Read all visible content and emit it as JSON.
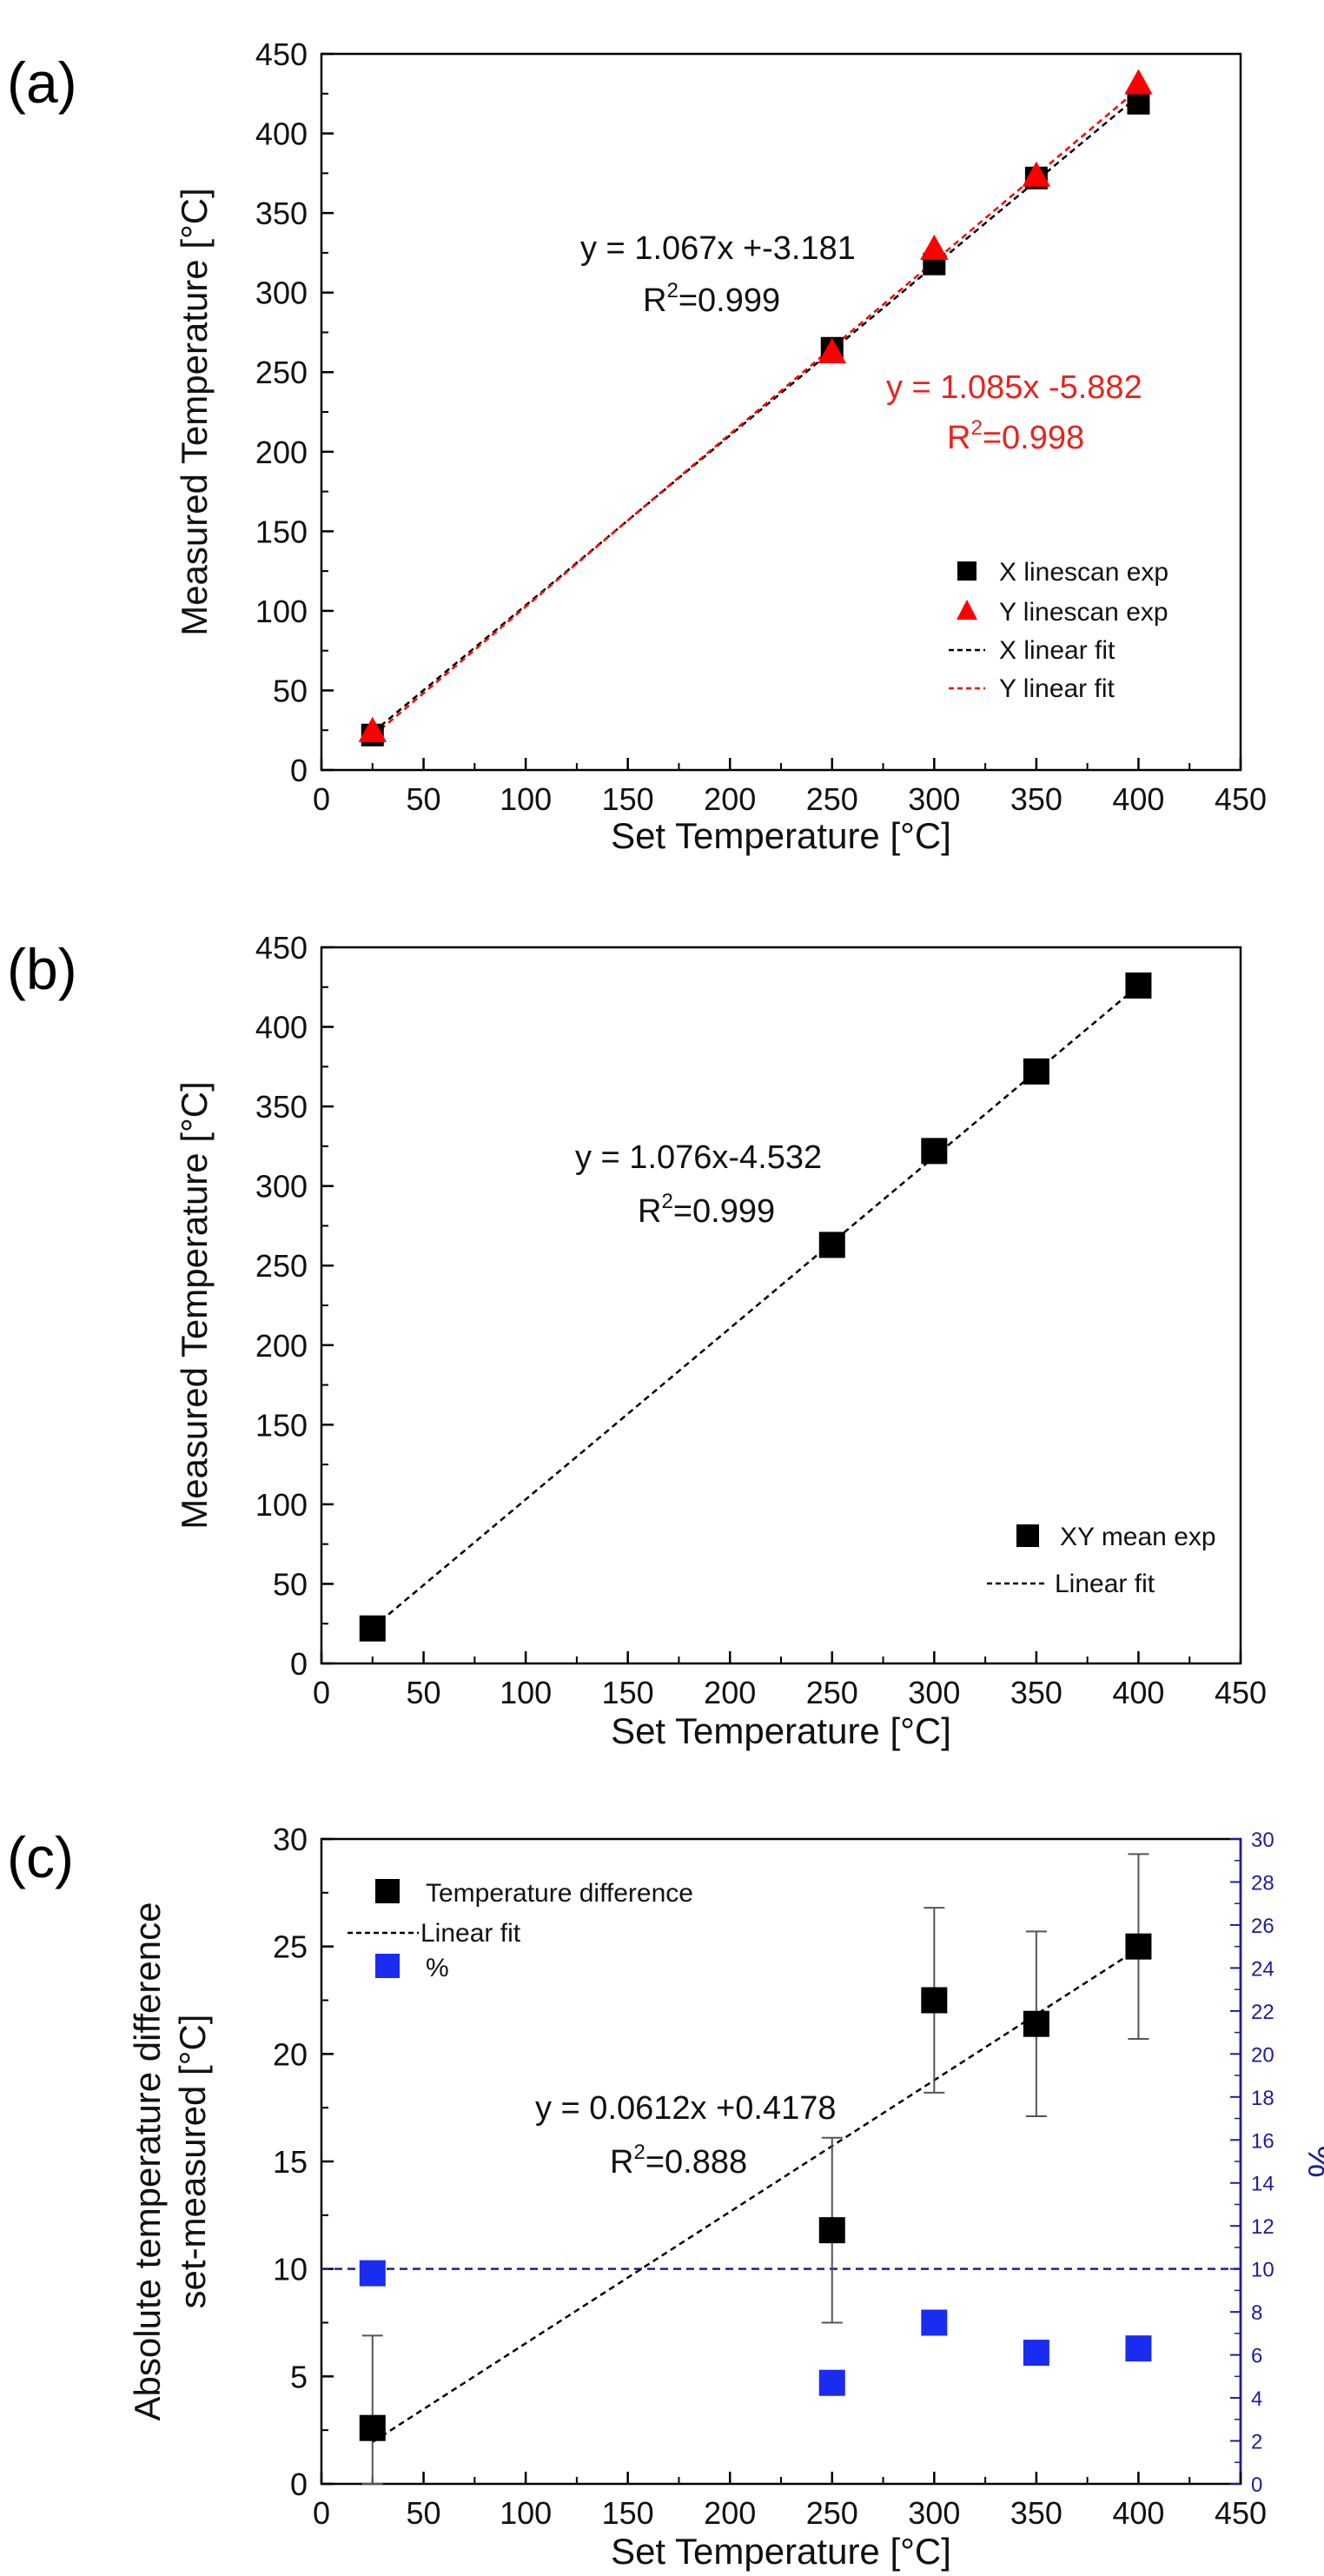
{
  "chart_data": [
    {
      "panel": "(a)",
      "type": "scatter",
      "xlabel": "Set Temperature [°C]",
      "ylabel": "Measured Temperature [°C]",
      "xlim": [
        0,
        450
      ],
      "ylim": [
        0,
        450
      ],
      "xticks": [
        0,
        50,
        100,
        150,
        200,
        250,
        300,
        350,
        400,
        450
      ],
      "yticks": [
        0,
        50,
        100,
        150,
        200,
        250,
        300,
        350,
        400,
        450
      ],
      "series": [
        {
          "name": "X linescan exp",
          "marker": "square",
          "color": "#000000",
          "x": [
            25,
            250,
            300,
            350,
            400
          ],
          "y": [
            22,
            265,
            318,
            372,
            419
          ]
        },
        {
          "name": "Y linescan exp",
          "marker": "triangle",
          "color": "#ff0000",
          "x": [
            25,
            250,
            300,
            350,
            400
          ],
          "y": [
            24,
            262,
            327,
            373,
            431
          ]
        },
        {
          "name": "X linear fit",
          "line": "dashed",
          "color": "#000000",
          "slope": 1.067,
          "intercept": -3.181,
          "xrange": [
            25,
            400
          ]
        },
        {
          "name": "Y linear fit",
          "line": "dashed",
          "color": "#ff0000",
          "slope": 1.085,
          "intercept": -5.882,
          "xrange": [
            25,
            400
          ]
        }
      ],
      "annotations": [
        {
          "eq": "y = 1.067x +-3.181",
          "r2_prefix": "R",
          "r2_sup": "2",
          "r2_value": "=0.999",
          "color": "#111111"
        },
        {
          "eq": "y = 1.085x -5.882",
          "r2_prefix": "R",
          "r2_sup": "2",
          "r2_value": "=0.998",
          "color": "#e8231e"
        }
      ]
    },
    {
      "panel": "(b)",
      "type": "scatter",
      "xlabel": "Set Temperature [°C]",
      "ylabel": "Measured Temperature [°C]",
      "xlim": [
        0,
        450
      ],
      "ylim": [
        0,
        450
      ],
      "xticks": [
        0,
        50,
        100,
        150,
        200,
        250,
        300,
        350,
        400,
        450
      ],
      "yticks": [
        0,
        50,
        100,
        150,
        200,
        250,
        300,
        350,
        400,
        450
      ],
      "series": [
        {
          "name": "XY mean exp",
          "marker": "square",
          "color": "#000000",
          "x": [
            25,
            250,
            300,
            350,
            400
          ],
          "y": [
            22,
            263,
            322,
            372,
            426
          ]
        },
        {
          "name": "Linear fit",
          "line": "dashed",
          "color": "#000000",
          "slope": 1.076,
          "intercept": -4.532,
          "xrange": [
            25,
            400
          ]
        }
      ],
      "annotations": [
        {
          "eq": "y = 1.076x-4.532",
          "r2_prefix": "R",
          "r2_sup": "2",
          "r2_value": "=0.999",
          "color": "#111111"
        }
      ]
    },
    {
      "panel": "(c)",
      "type": "scatter",
      "xlabel": "Set Temperature [°C]",
      "ylabel_line1": "Absolute temperature difference",
      "ylabel_line2": "set-measured [°C]",
      "y2label": "%",
      "xlim": [
        0,
        450
      ],
      "ylim": [
        0,
        30
      ],
      "y2lim": [
        0,
        30
      ],
      "xticks": [
        0,
        50,
        100,
        150,
        200,
        250,
        300,
        350,
        400,
        450
      ],
      "yticks": [
        0,
        5,
        10,
        15,
        20,
        25,
        30
      ],
      "y2ticks": [
        0,
        2,
        4,
        6,
        8,
        10,
        12,
        14,
        16,
        18,
        20,
        22,
        24,
        26,
        28,
        30
      ],
      "series": [
        {
          "name": "Temperature difference",
          "marker": "square",
          "color": "#000000",
          "x": [
            25,
            250,
            300,
            350,
            400
          ],
          "y": [
            2.6,
            11.8,
            22.5,
            21.4,
            25.0
          ],
          "err": [
            4.3,
            4.3,
            4.3,
            4.3,
            4.3
          ]
        },
        {
          "name": "Linear fit",
          "line": "dashed",
          "color": "#000000",
          "slope": 0.0612,
          "intercept": 0.4178,
          "xrange": [
            25,
            400
          ]
        },
        {
          "name": "%",
          "marker": "square",
          "color": "#1a2cf0",
          "axis": "right",
          "x": [
            25,
            250,
            300,
            350,
            400
          ],
          "y": [
            9.8,
            4.7,
            7.5,
            6.1,
            6.3
          ]
        }
      ],
      "reference_line": {
        "axis": "right",
        "y": 10,
        "color": "#1d1d9e"
      },
      "annotations": [
        {
          "eq": "y = 0.0612x +0.4178",
          "r2_prefix": "R",
          "r2_sup": "2",
          "r2_value": "=0.888",
          "color": "#111111"
        }
      ]
    }
  ]
}
